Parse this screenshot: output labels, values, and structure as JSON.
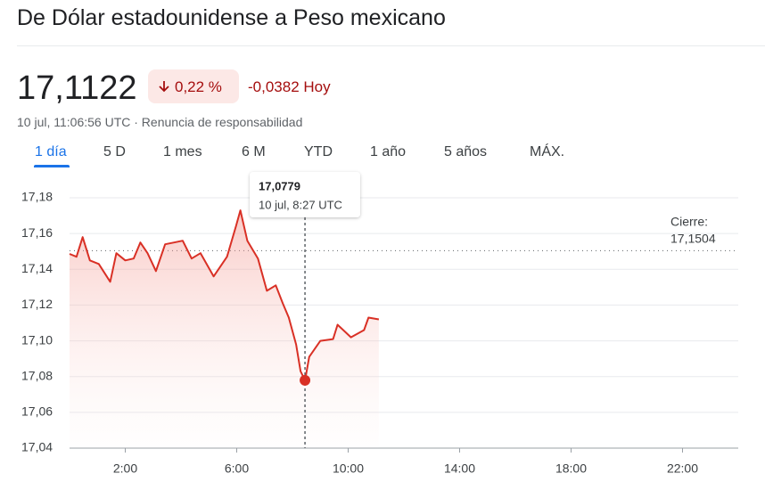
{
  "header": {
    "title": "De Dólar estadounidense a Peso mexicano",
    "price": "17,1122",
    "change_percent": "0,22 %",
    "change": "-0,0382 Hoy",
    "timestamp": "10 jul, 11:06:56 UTC · Renuncia de responsabilidad"
  },
  "tabs": [
    "1 día",
    "5 D",
    "1 mes",
    "6 M",
    "YTD",
    "1 año",
    "5 años",
    "MÁX."
  ],
  "active_tab": 0,
  "chart_data": {
    "type": "line",
    "color": "#d93025",
    "x": [
      0,
      0.25,
      0.47,
      0.73,
      1.05,
      1.46,
      1.68,
      2,
      2.3,
      2.54,
      2.8,
      3.1,
      3.43,
      3.75,
      4.06,
      4.38,
      4.7,
      5.17,
      5.65,
      5.97,
      6.13,
      6.38,
      6.76,
      7.08,
      7.4,
      7.65,
      7.87,
      8.13,
      8.29,
      8.45,
      8.6,
      9,
      9.46,
      9.62,
      10.1,
      10.57,
      10.73,
      11.1
    ],
    "values": [
      17.1486,
      17.147,
      17.158,
      17.145,
      17.143,
      17.133,
      17.149,
      17.145,
      17.146,
      17.155,
      17.149,
      17.139,
      17.154,
      17.155,
      17.156,
      17.146,
      17.149,
      17.136,
      17.147,
      17.164,
      17.173,
      17.156,
      17.146,
      17.128,
      17.131,
      17.121,
      17.113,
      17.098,
      17.083,
      17.0779,
      17.091,
      17.1,
      17.101,
      17.109,
      17.102,
      17.106,
      17.113,
      17.112
    ],
    "xlim": [
      0,
      24
    ],
    "xticks": [
      {
        "value": 2,
        "label": "2:00"
      },
      {
        "value": 6,
        "label": "6:00"
      },
      {
        "value": 10,
        "label": "10:00"
      },
      {
        "value": 14,
        "label": "14:00"
      },
      {
        "value": 18,
        "label": "18:00"
      },
      {
        "value": 22,
        "label": "22:00"
      }
    ],
    "ylim": [
      17.04,
      17.18
    ],
    "yticks": [
      {
        "value": 17.04,
        "label": "17,04"
      },
      {
        "value": 17.06,
        "label": "17,06"
      },
      {
        "value": 17.08,
        "label": "17,08"
      },
      {
        "value": 17.1,
        "label": "17,10"
      },
      {
        "value": 17.12,
        "label": "17,12"
      },
      {
        "value": 17.14,
        "label": "17,14"
      },
      {
        "value": 17.16,
        "label": "17,16"
      },
      {
        "value": 17.18,
        "label": "17,18"
      }
    ],
    "grid": true,
    "close": {
      "title": "Cierre:",
      "value": 17.1504,
      "label": "17,1504"
    },
    "tooltip": {
      "x": 8.45,
      "value": 17.0779,
      "label": "17,0779",
      "time_label": "10 jul, 8:27 UTC"
    }
  }
}
